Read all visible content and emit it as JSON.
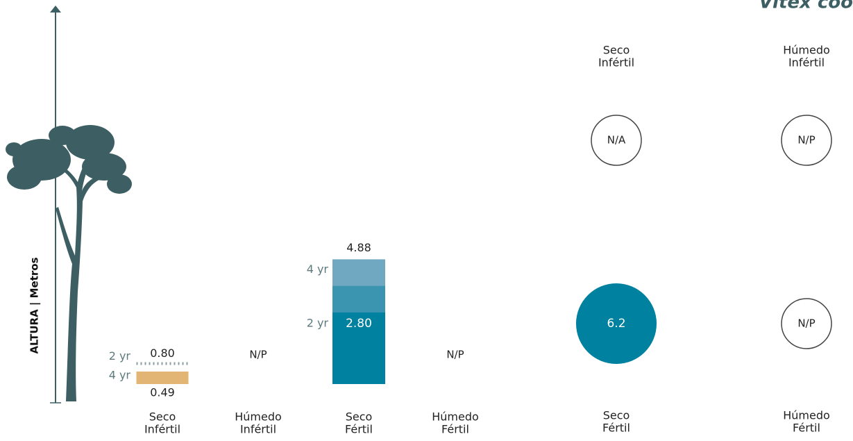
{
  "title": "Vitex coo",
  "chart_data": [
    {
      "type": "bar",
      "ylabel": "ALTURA | Metros",
      "categories": [
        [
          "Seco",
          "Infértil"
        ],
        [
          "Húmedo",
          "Infértil"
        ],
        [
          "Seco",
          "Fértil"
        ],
        [
          "Húmedo",
          "Fértil"
        ]
      ],
      "category_notes": [
        null,
        "N/P",
        null,
        "N/P"
      ],
      "series": [
        {
          "name": "2 yr",
          "values": [
            0.8,
            null,
            2.8,
            null
          ],
          "value_labels": [
            "0.80",
            null,
            "2.80",
            null
          ],
          "colors": [
            "#8a9ea0",
            null,
            "#00819f",
            null
          ]
        },
        {
          "name": "4 yr",
          "values": [
            0.49,
            null,
            4.88,
            null
          ],
          "value_labels": [
            "0.49",
            null,
            "4.88",
            null
          ],
          "colors": [
            "#e3b574",
            null,
            "#6fa8c0",
            null
          ]
        }
      ],
      "ylim": [
        0,
        14.7
      ]
    },
    {
      "type": "bubble",
      "categories": [
        [
          "Seco",
          "Infértil"
        ],
        [
          "Húmedo",
          "Infértil"
        ],
        [
          "Seco",
          "Fértil"
        ],
        [
          "Húmedo",
          "Fértil"
        ]
      ],
      "values": [
        null,
        null,
        6.2,
        null
      ],
      "value_labels": [
        "N/A",
        "N/P",
        "6.2",
        "N/P"
      ],
      "color": "#00819f"
    }
  ]
}
